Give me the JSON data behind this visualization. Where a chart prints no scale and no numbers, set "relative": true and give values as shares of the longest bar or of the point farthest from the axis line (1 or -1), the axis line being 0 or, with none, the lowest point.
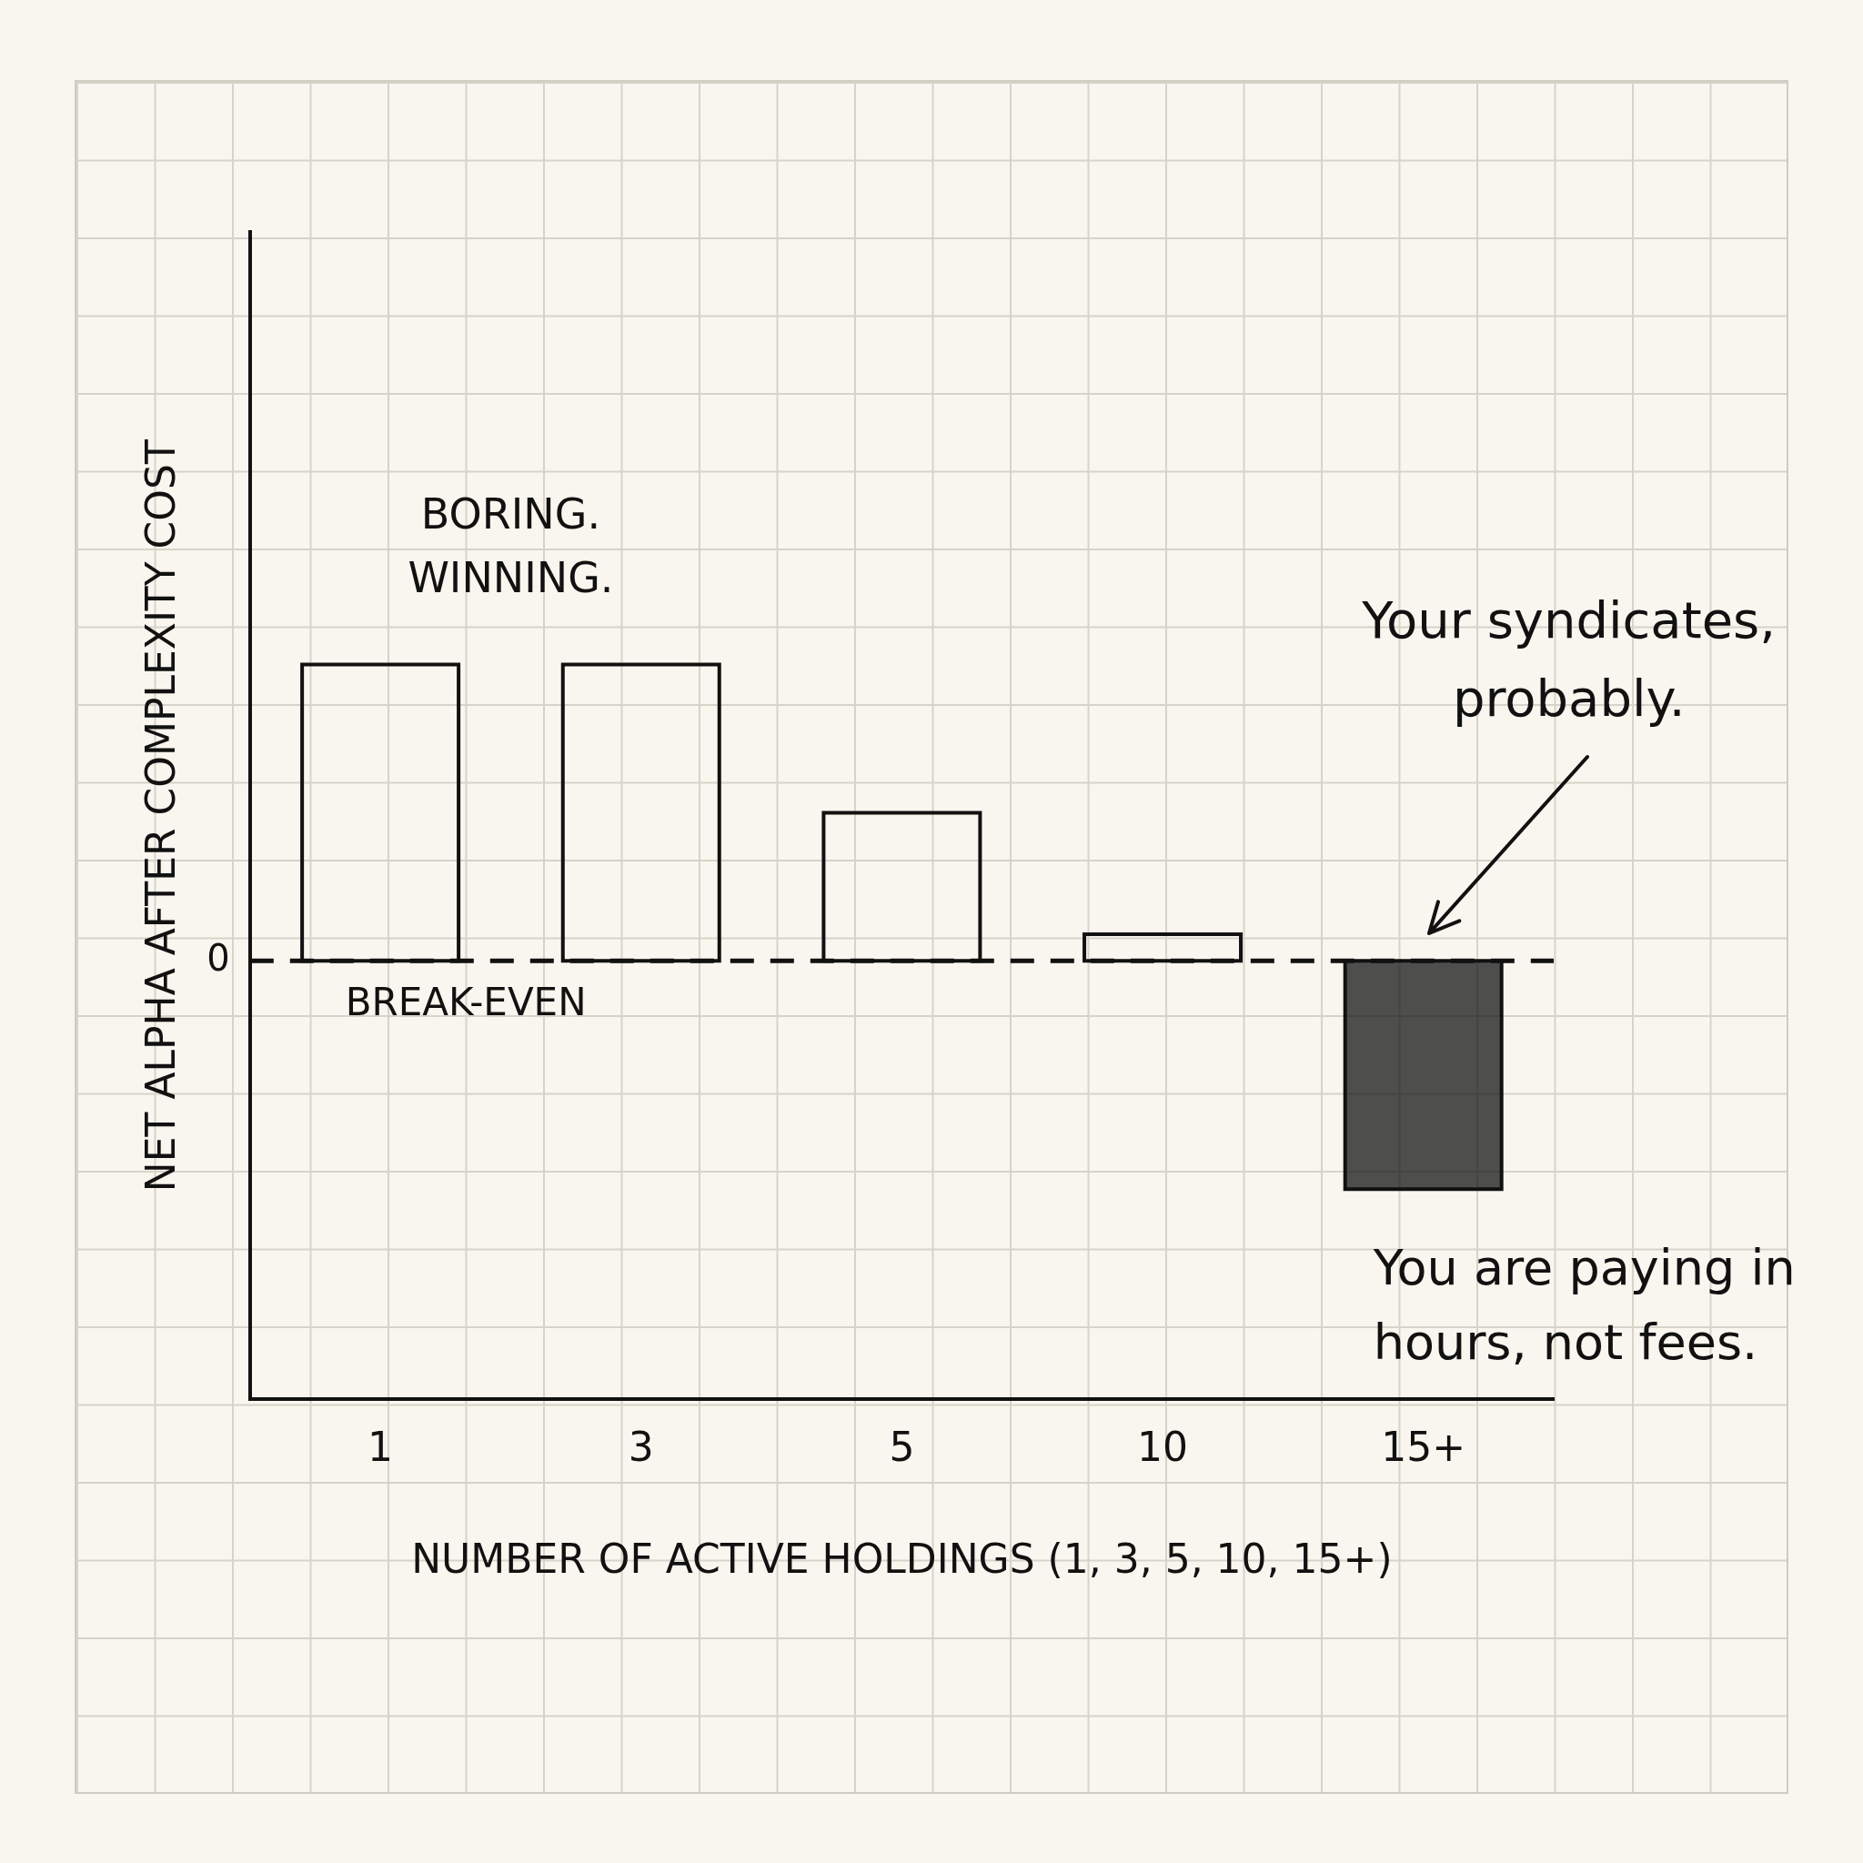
{
  "chart_data": {
    "type": "bar",
    "relative": true,
    "xlabel": "NUMBER OF ACTIVE HOLDINGS (1, 3, 5, 10, 15+)",
    "ylabel": "NET ALPHA AFTER COMPLEXITY COST",
    "categories": [
      "1",
      "3",
      "5",
      "10",
      "15+"
    ],
    "values": [
      1.0,
      1.0,
      0.5,
      0.09,
      -0.77
    ],
    "colors": [
      "#111111",
      "#111111",
      "#111111",
      "#111111",
      "#111111"
    ],
    "ref_lines": [
      {
        "axis": "y",
        "value": 0,
        "label": "BREAK-EVEN",
        "line_style": "dashed",
        "color": "#111111"
      }
    ],
    "annotations": [
      "0",
      "BORING. WINNING.",
      "Your syndicates, probably.",
      "You are paying in hours, not fees."
    ],
    "grid": false,
    "legend": false
  }
}
